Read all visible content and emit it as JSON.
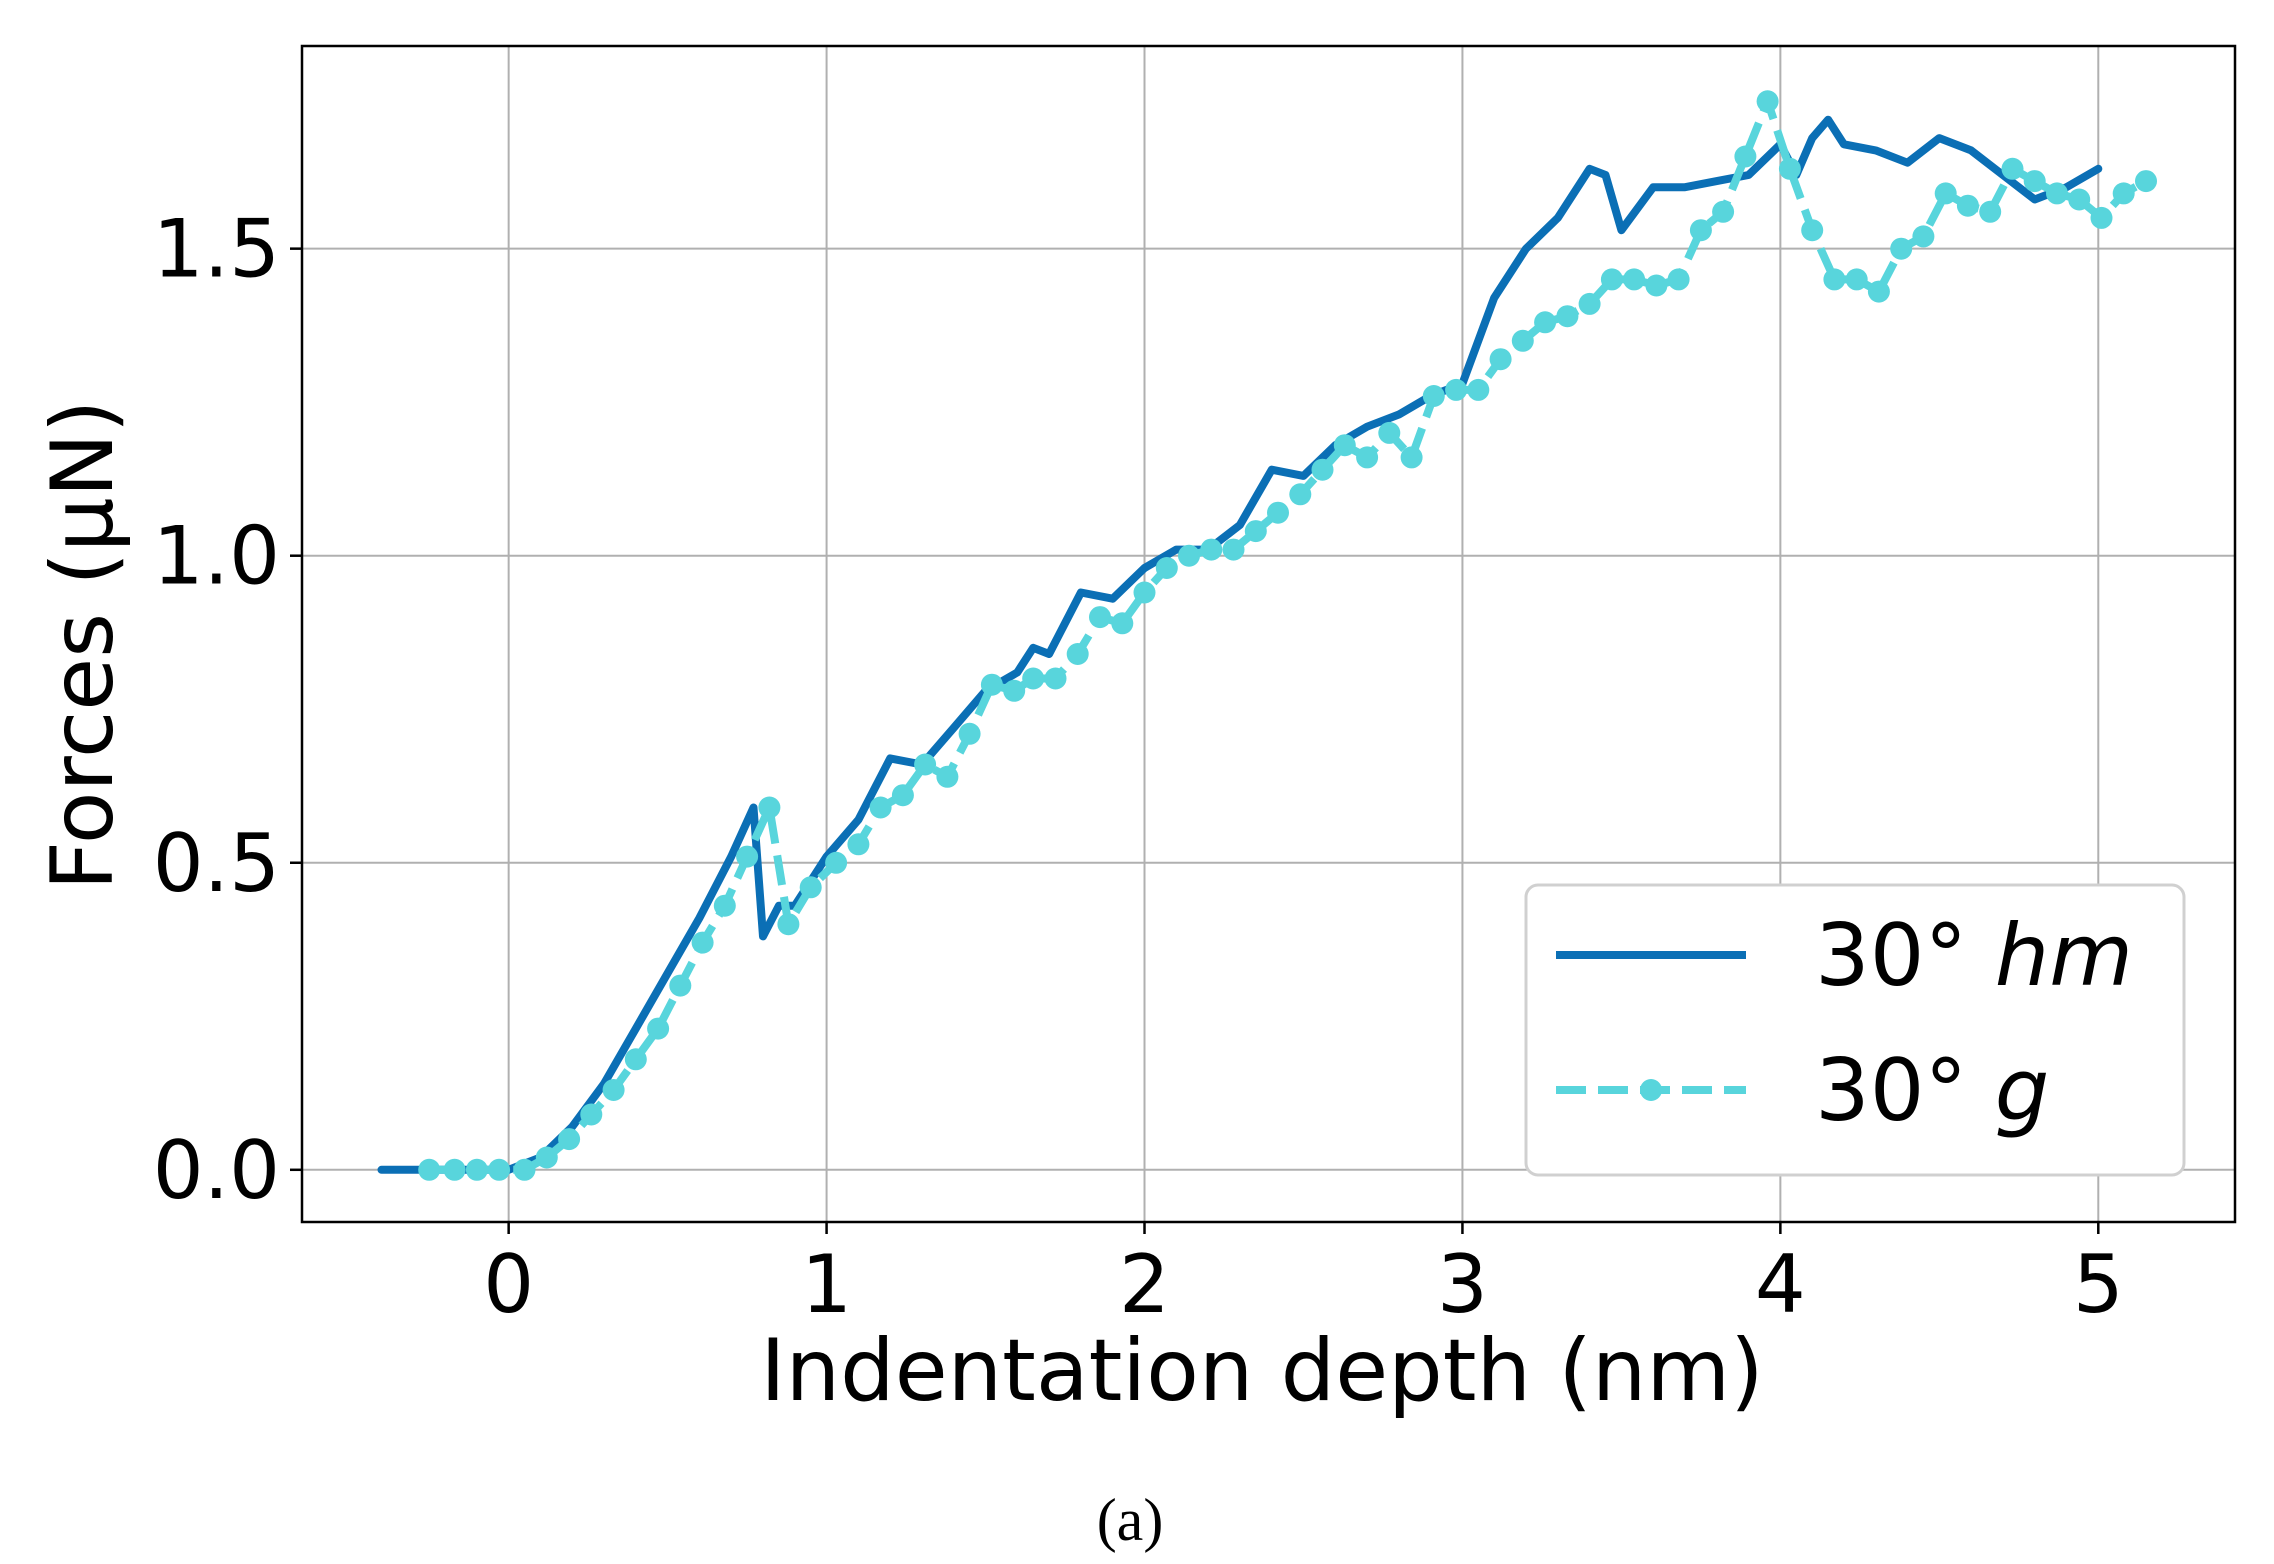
{
  "chart_data": {
    "type": "line",
    "xlabel": "Indentation depth (nm)",
    "ylabel": "Forces (μN)",
    "xlim": [
      -0.65,
      5.43
    ],
    "ylim": [
      -0.085,
      1.83
    ],
    "xticks": [
      "0",
      "1",
      "2",
      "3",
      "4",
      "5"
    ],
    "yticks": [
      "0.0",
      "0.5",
      "1.0",
      "1.5"
    ],
    "grid": true,
    "legend_position": "lower-right",
    "caption": "(a)",
    "colors": {
      "hm": "#0b6fb5",
      "g": "#58d5dc",
      "grid": "#b0b0b0"
    },
    "series": [
      {
        "name": "30° hm",
        "legend_prefix": "30° ",
        "legend_italic": "hm",
        "style": "solid",
        "x": [
          -0.4,
          -0.3,
          -0.2,
          -0.1,
          0.0,
          0.1,
          0.2,
          0.3,
          0.4,
          0.5,
          0.6,
          0.7,
          0.77,
          0.8,
          0.85,
          0.9,
          1.0,
          1.1,
          1.2,
          1.3,
          1.4,
          1.5,
          1.6,
          1.65,
          1.7,
          1.8,
          1.9,
          2.0,
          2.1,
          2.2,
          2.3,
          2.4,
          2.5,
          2.6,
          2.7,
          2.8,
          2.9,
          3.0,
          3.1,
          3.2,
          3.3,
          3.4,
          3.45,
          3.5,
          3.6,
          3.7,
          3.8,
          3.9,
          4.0,
          4.05,
          4.1,
          4.15,
          4.2,
          4.3,
          4.4,
          4.5,
          4.6,
          4.7,
          4.8,
          4.9,
          5.0
        ],
        "y": [
          0.0,
          0.0,
          0.0,
          0.0,
          0.0,
          0.02,
          0.07,
          0.14,
          0.23,
          0.32,
          0.41,
          0.51,
          0.59,
          0.38,
          0.43,
          0.43,
          0.51,
          0.57,
          0.67,
          0.66,
          0.72,
          0.78,
          0.81,
          0.85,
          0.84,
          0.94,
          0.93,
          0.98,
          1.01,
          1.01,
          1.05,
          1.14,
          1.13,
          1.18,
          1.21,
          1.23,
          1.26,
          1.28,
          1.42,
          1.5,
          1.55,
          1.63,
          1.62,
          1.53,
          1.6,
          1.6,
          1.61,
          1.62,
          1.67,
          1.62,
          1.68,
          1.71,
          1.67,
          1.66,
          1.64,
          1.68,
          1.66,
          1.62,
          1.58,
          1.6,
          1.63
        ]
      },
      {
        "name": "30° g",
        "legend_prefix": "30° ",
        "legend_italic": "g",
        "style": "dashed-markers",
        "x": [
          -0.25,
          -0.17,
          -0.1,
          -0.03,
          0.05,
          0.12,
          0.19,
          0.26,
          0.33,
          0.4,
          0.47,
          0.54,
          0.61,
          0.68,
          0.75,
          0.82,
          0.88,
          0.95,
          1.03,
          1.1,
          1.17,
          1.24,
          1.31,
          1.38,
          1.45,
          1.52,
          1.59,
          1.65,
          1.72,
          1.79,
          1.86,
          1.93,
          2.0,
          2.07,
          2.14,
          2.21,
          2.28,
          2.35,
          2.42,
          2.49,
          2.56,
          2.63,
          2.7,
          2.77,
          2.84,
          2.91,
          2.98,
          3.05,
          3.12,
          3.19,
          3.26,
          3.33,
          3.4,
          3.47,
          3.54,
          3.61,
          3.68,
          3.75,
          3.82,
          3.89,
          3.96,
          4.03,
          4.1,
          4.17,
          4.24,
          4.31,
          4.38,
          4.45,
          4.52,
          4.59,
          4.66,
          4.73,
          4.8,
          4.87,
          4.94,
          5.01,
          5.08,
          5.15
        ],
        "y": [
          0.0,
          0.0,
          0.0,
          0.0,
          0.0,
          0.02,
          0.05,
          0.09,
          0.13,
          0.18,
          0.23,
          0.3,
          0.37,
          0.43,
          0.51,
          0.59,
          0.4,
          0.46,
          0.5,
          0.53,
          0.59,
          0.61,
          0.66,
          0.64,
          0.71,
          0.79,
          0.78,
          0.8,
          0.8,
          0.84,
          0.9,
          0.89,
          0.94,
          0.98,
          1.0,
          1.01,
          1.01,
          1.04,
          1.07,
          1.1,
          1.14,
          1.18,
          1.16,
          1.2,
          1.16,
          1.26,
          1.27,
          1.27,
          1.32,
          1.35,
          1.38,
          1.39,
          1.41,
          1.45,
          1.45,
          1.44,
          1.45,
          1.53,
          1.56,
          1.65,
          1.74,
          1.63,
          1.53,
          1.45,
          1.45,
          1.43,
          1.5,
          1.52,
          1.59,
          1.57,
          1.56,
          1.63,
          1.61,
          1.59,
          1.58,
          1.55,
          1.59,
          1.61
        ]
      }
    ]
  }
}
